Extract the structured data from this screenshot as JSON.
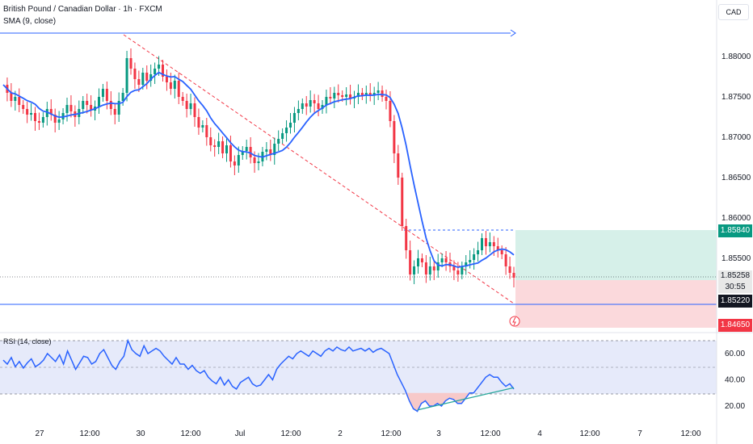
{
  "header": {
    "title": "British Pound / Canadian Dollar · 1h · FXCM",
    "sma_label": "SMA (9, close)",
    "rsi_label": "RSI (14, close)",
    "currency_button": "CAD"
  },
  "price_scale": {
    "ticks": [
      "1.88000",
      "1.87500",
      "1.87000",
      "1.86500",
      "1.86000",
      "1.85500"
    ],
    "tick_values": [
      1.88,
      1.875,
      1.87,
      1.865,
      1.86,
      1.855
    ],
    "current_price": "1.85258",
    "countdown": "30:55",
    "target_price": "1.85840",
    "stop_price": "1.84650",
    "support_price": "1.85220",
    "colors": {
      "up": "#089981",
      "down": "#f23645",
      "sma": "#2962ff",
      "support": "#2962ff",
      "target_zone": "#d6f0e9",
      "stop_zone": "#fbd9dc",
      "price_tag": "#131722",
      "countdown_tag": "#e8e8e8"
    }
  },
  "rsi_scale": {
    "ticks": [
      "60.00",
      "40.00",
      "20.00"
    ],
    "tick_values": [
      60,
      40,
      20
    ],
    "upper_band": 70,
    "lower_band": 30,
    "mid": 50
  },
  "time_axis": [
    "27",
    "12:00",
    "30",
    "12:00",
    "Jul",
    "12:00",
    "2",
    "12:00",
    "3",
    "12:00",
    "4",
    "12:00",
    "7",
    "12:00"
  ],
  "chart_data": {
    "type": "candlestick",
    "instrument": "GBP/CAD",
    "interval": "1h",
    "price_range": [
      1.846,
      1.883
    ],
    "sma_period": 9,
    "horizontal_levels": {
      "resistance": 1.8827,
      "support": 1.8522
    },
    "position": {
      "entry": 1.8526,
      "target": 1.8584,
      "stop": 1.8465
    },
    "price_path": [
      1.8765,
      1.8755,
      1.8745,
      1.875,
      1.874,
      1.8735,
      1.8728,
      1.873,
      1.872,
      1.8718,
      1.8725,
      1.8735,
      1.8728,
      1.8718,
      1.8722,
      1.873,
      1.874,
      1.8732,
      1.8725,
      1.8735,
      1.8745,
      1.874,
      1.8733,
      1.8738,
      1.875,
      1.876,
      1.8745,
      1.8735,
      1.8728,
      1.8745,
      1.8755,
      1.8798,
      1.8785,
      1.8772,
      1.8765,
      1.878,
      1.877,
      1.8778,
      1.8785,
      1.879,
      1.8775,
      1.8768,
      1.876,
      1.877,
      1.875,
      1.8745,
      1.8735,
      1.8742,
      1.8725,
      1.8712,
      1.8715,
      1.87,
      1.869,
      1.8688,
      1.8695,
      1.868,
      1.869,
      1.867,
      1.8665,
      1.8678,
      1.8683,
      1.8688,
      1.8675,
      1.8668,
      1.867,
      1.8682,
      1.8685,
      1.8678,
      1.8692,
      1.8698,
      1.8705,
      1.8712,
      1.8718,
      1.873,
      1.8735,
      1.8742,
      1.8738,
      1.8746,
      1.8742,
      1.8735,
      1.874,
      1.875,
      1.8748,
      1.8755,
      1.8752,
      1.875,
      1.8753,
      1.8748,
      1.875,
      1.8755,
      1.8752,
      1.8755,
      1.8752,
      1.8755,
      1.8758,
      1.875,
      1.8745,
      1.872,
      1.868,
      1.865,
      1.859,
      1.856,
      1.853,
      1.854,
      1.855,
      1.8545,
      1.853,
      1.854,
      1.8535,
      1.8545,
      1.855,
      1.8545,
      1.854,
      1.8535,
      1.853,
      1.854,
      1.8545,
      1.8548,
      1.8555,
      1.856,
      1.8575,
      1.8565,
      1.857,
      1.8565,
      1.856,
      1.8555,
      1.854,
      1.8532,
      1.8526
    ],
    "rsi": [
      55,
      52,
      57,
      50,
      54,
      49,
      53,
      56,
      50,
      52,
      55,
      60,
      57,
      54,
      59,
      52,
      62,
      55,
      48,
      53,
      58,
      57,
      52,
      54,
      60,
      63,
      57,
      51,
      48,
      54,
      58,
      70,
      63,
      60,
      58,
      66,
      60,
      62,
      64,
      62,
      58,
      55,
      52,
      57,
      52,
      52,
      48,
      51,
      47,
      45,
      47,
      42,
      39,
      37,
      42,
      36,
      40,
      35,
      33,
      38,
      40,
      42,
      37,
      35,
      36,
      40,
      44,
      40,
      48,
      52,
      55,
      58,
      56,
      60,
      62,
      60,
      58,
      62,
      60,
      58,
      62,
      64,
      62,
      65,
      63,
      62,
      65,
      62,
      63,
      64,
      62,
      64,
      61,
      63,
      64,
      62,
      60,
      52,
      44,
      38,
      32,
      24,
      18,
      16,
      22,
      24,
      20,
      20,
      22,
      20,
      24,
      26,
      25,
      22,
      22,
      26,
      30,
      30,
      34,
      38,
      42,
      44,
      42,
      42,
      38,
      35,
      37,
      33
    ],
    "rsi_divergence": {
      "from": 17,
      "to": 34
    }
  }
}
